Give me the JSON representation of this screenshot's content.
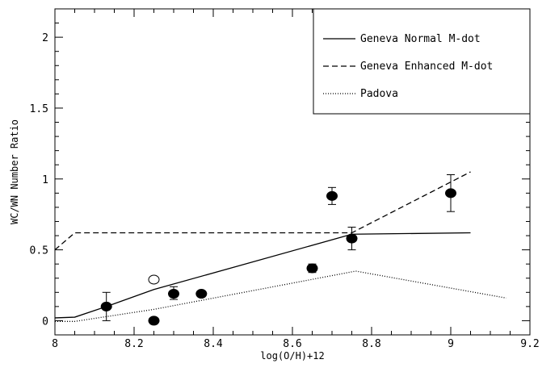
{
  "chart_data": {
    "type": "line",
    "xlabel": "log(O/H)+12",
    "ylabel": "WC/WN Number Ratio",
    "xlim": [
      8.0,
      9.2
    ],
    "ylim": [
      -0.1,
      2.2
    ],
    "x_ticks": [
      "8",
      "8.2",
      "8.4",
      "8.6",
      "8.8",
      "9",
      "9.2"
    ],
    "y_ticks": [
      "0",
      "0.5",
      "1",
      "1.5",
      "2"
    ],
    "legend_position": "top-right",
    "series": [
      {
        "name": "Geneva Normal M-dot",
        "style": "solid",
        "x": [
          8.0,
          8.05,
          8.13,
          8.25,
          8.75,
          9.05
        ],
        "y": [
          0.02,
          0.025,
          0.1,
          0.22,
          0.61,
          0.62
        ]
      },
      {
        "name": "Geneva Enhanced M-dot",
        "style": "dashed",
        "x": [
          8.0,
          8.05,
          8.75,
          9.05
        ],
        "y": [
          0.5,
          0.62,
          0.62,
          1.05
        ]
      },
      {
        "name": "Padova",
        "style": "dotted",
        "x": [
          8.0,
          8.05,
          8.25,
          8.76,
          9.14
        ],
        "y": [
          -0.005,
          -0.005,
          0.08,
          0.35,
          0.16
        ]
      }
    ],
    "points": [
      {
        "x": 8.13,
        "y": 0.1,
        "err_low": 0.0,
        "err_high": 0.2,
        "filled": true
      },
      {
        "x": 8.25,
        "y": 0.0,
        "filled": true
      },
      {
        "x": 8.25,
        "y": 0.29,
        "filled": false
      },
      {
        "x": 8.3,
        "y": 0.19,
        "err_low": 0.15,
        "err_high": 0.24,
        "filled": true
      },
      {
        "x": 8.37,
        "y": 0.19,
        "filled": true
      },
      {
        "x": 8.65,
        "y": 0.37,
        "err_low": 0.34,
        "err_high": 0.4,
        "filled": true
      },
      {
        "x": 8.7,
        "y": 0.88,
        "err_low": 0.82,
        "err_high": 0.94,
        "filled": true
      },
      {
        "x": 8.75,
        "y": 0.58,
        "err_low": 0.5,
        "err_high": 0.66,
        "filled": true
      },
      {
        "x": 9.0,
        "y": 0.9,
        "err_low": 0.77,
        "err_high": 1.03,
        "filled": true
      }
    ]
  }
}
